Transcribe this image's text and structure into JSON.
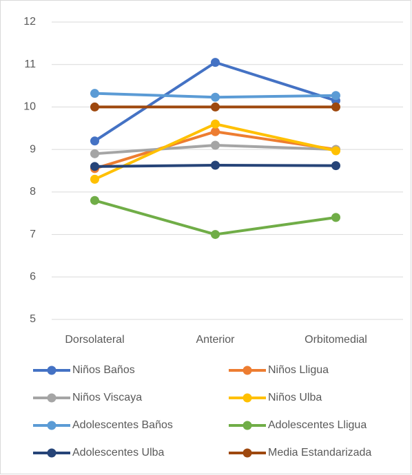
{
  "chart_data": {
    "type": "line",
    "categories": [
      "Dorsolateral",
      "Anterior",
      "Orbitomedial"
    ],
    "series": [
      {
        "name": "Niños Baños",
        "color": "#4472c4",
        "values": [
          9.2,
          11.05,
          10.15
        ]
      },
      {
        "name": "Niños Lligua",
        "color": "#ed7d31",
        "values": [
          8.55,
          9.42,
          9.0
        ]
      },
      {
        "name": "Niños Viscaya",
        "color": "#a5a5a5",
        "values": [
          8.9,
          9.1,
          9.0
        ]
      },
      {
        "name": "Niños Ulba",
        "color": "#ffc000",
        "values": [
          8.3,
          9.6,
          8.97
        ]
      },
      {
        "name": "Adolescentes Baños",
        "color": "#5b9bd5",
        "values": [
          10.32,
          10.23,
          10.27
        ]
      },
      {
        "name": "Adolescentes Lligua",
        "color": "#70ad47",
        "values": [
          7.8,
          7.0,
          7.4
        ]
      },
      {
        "name": "Adolescentes Ulba",
        "color": "#264478",
        "values": [
          8.6,
          8.63,
          8.62
        ]
      },
      {
        "name": "Media Estandarizada",
        "color": "#9e480e",
        "values": [
          10,
          10,
          10
        ]
      }
    ],
    "ylim": [
      5,
      12
    ],
    "yticks": [
      5,
      6,
      7,
      8,
      9,
      10,
      11,
      12
    ],
    "grid": true,
    "legend": "bottom"
  }
}
